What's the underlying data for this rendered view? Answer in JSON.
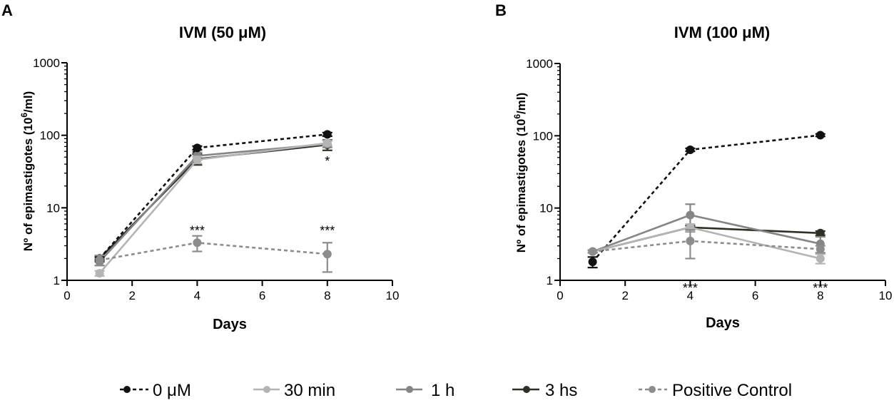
{
  "chart_data": [
    {
      "type": "line",
      "panel": "A",
      "title": "IVM (50 μM)",
      "xlabel": "Days",
      "ylabel": "Nº of epimastigotes (10",
      "ylabel_sup": "6",
      "ylabel_end": "/ml)",
      "yscale": "log",
      "xlim": [
        0,
        10
      ],
      "ylim": [
        1,
        1000
      ],
      "xticks": [
        0,
        2,
        4,
        6,
        8,
        10
      ],
      "xtick_labels": [
        "0",
        "2",
        "4",
        "6",
        "8",
        "10"
      ],
      "yticks": [
        1,
        10,
        100,
        1000
      ],
      "ytick_labels": [
        "1",
        "10",
        "100",
        "1000"
      ],
      "x": [
        1,
        4,
        8
      ],
      "series": [
        {
          "name": "3 hs",
          "values": [
            2.0,
            47,
            74
          ],
          "err": [
            0.2,
            8,
            12
          ]
        },
        {
          "name": "1 h",
          "values": [
            1.8,
            52,
            76
          ],
          "err": [
            0.2,
            6,
            8
          ]
        },
        {
          "name": "30 min",
          "values": [
            1.25,
            46,
            78
          ],
          "err": [
            0.1,
            5,
            6
          ]
        },
        {
          "name": "0 μM",
          "values": [
            2.0,
            67,
            103
          ],
          "err": [
            0.1,
            4,
            6
          ]
        },
        {
          "name": "Positive Control",
          "values": [
            1.9,
            3.3,
            2.3
          ],
          "err": [
            0.3,
            0.8,
            1.0
          ]
        }
      ],
      "annotations": [
        {
          "text": "***",
          "x": 4,
          "y": 4.8
        },
        {
          "text": "***",
          "x": 8,
          "y": 4.8
        },
        {
          "text": "*",
          "x": 8,
          "y": 44
        }
      ]
    },
    {
      "type": "line",
      "panel": "B",
      "title": "IVM (100 μM)",
      "xlabel": "Days",
      "ylabel": "Nº of epimastigotes (10",
      "ylabel_sup": "6",
      "ylabel_end": "/ml)",
      "yscale": "log",
      "xlim": [
        0,
        10
      ],
      "ylim": [
        1,
        1000
      ],
      "xticks": [
        0,
        2,
        4,
        6,
        8,
        10
      ],
      "xtick_labels": [
        "0",
        "2",
        "4",
        "6",
        "8",
        "10"
      ],
      "yticks": [
        1,
        10,
        100,
        1000
      ],
      "ytick_labels": [
        "1",
        "10",
        "100",
        "1000"
      ],
      "x": [
        1,
        4,
        8
      ],
      "series": [
        {
          "name": "0 μM",
          "values": [
            1.8,
            64,
            102
          ],
          "err": [
            0.3,
            3,
            4
          ]
        },
        {
          "name": "3 hs",
          "values": [
            2.5,
            5.4,
            4.5
          ],
          "err": [
            0.1,
            0.3,
            0.3
          ]
        },
        {
          "name": "1 h",
          "values": [
            2.5,
            8.0,
            3.2
          ],
          "err": [
            0.1,
            3.3,
            0.8
          ]
        },
        {
          "name": "30 min",
          "values": [
            2.5,
            5.4,
            2.0
          ],
          "err": [
            0.1,
            0.6,
            0.3
          ]
        },
        {
          "name": "Positive Control",
          "values": [
            2.5,
            3.5,
            2.7
          ],
          "err": [
            0.1,
            1.5,
            0.3
          ]
        }
      ],
      "annotations": [
        {
          "text": "***",
          "x": 4,
          "y": 0.78
        },
        {
          "text": "***",
          "x": 8,
          "y": 0.78
        }
      ]
    }
  ],
  "legend": {
    "placement": "bottom",
    "items": [
      {
        "label": "0 μM",
        "color": "#111111",
        "dashed": true
      },
      {
        "label": "30 min",
        "color": "#b4b4b4",
        "dashed": false
      },
      {
        "label": "1 h",
        "color": "#858585",
        "dashed": false
      },
      {
        "label": "3 hs",
        "color": "#2d3022",
        "dashed": false
      },
      {
        "label": "Positive Control",
        "color": "#8c8c8c",
        "dashed": true
      }
    ]
  },
  "series_colors": {
    "0 μM": "#111111",
    "30 min": "#b4b4b4",
    "1 h": "#858585",
    "3 hs": "#2d3022",
    "Positive Control": "#8c8c8c"
  }
}
